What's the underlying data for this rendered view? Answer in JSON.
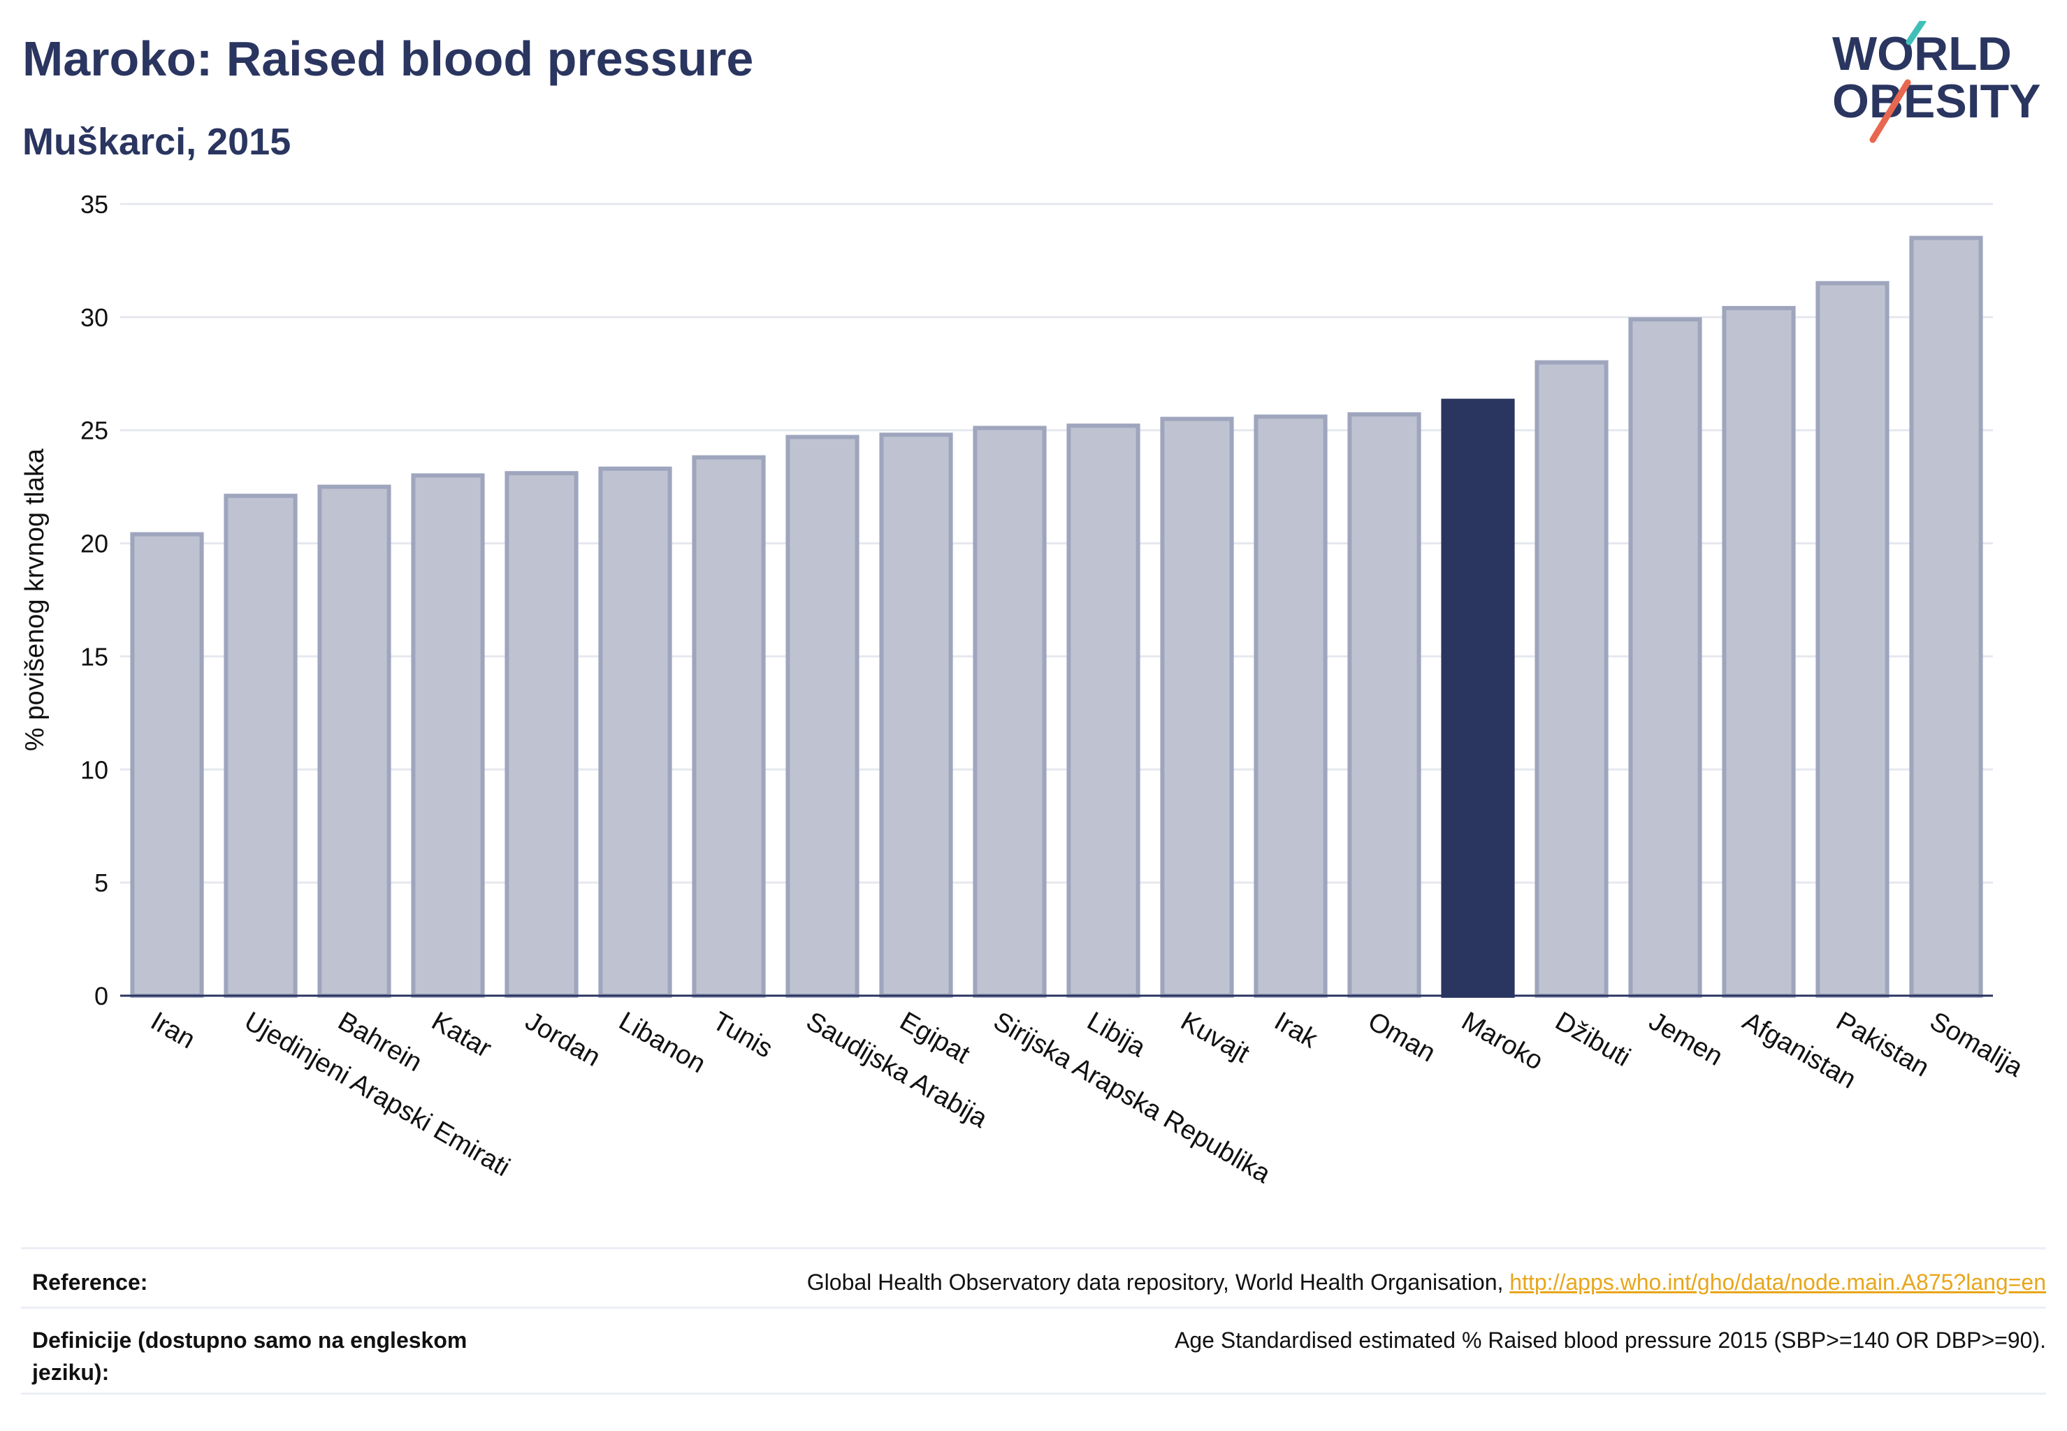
{
  "header": {
    "title": "Maroko: Raised blood pressure",
    "subtitle": "Muškarci, 2015"
  },
  "logo": {
    "line1": "WORLD",
    "line2": "OBESITY",
    "text_color": "#2a3560",
    "slash_colors": [
      "#3fbfb8",
      "#e8674f"
    ]
  },
  "chart_data": {
    "type": "bar",
    "ylabel": "% povišenog krvnog tlaka",
    "xlabel": "",
    "ylim": [
      0,
      35
    ],
    "yticks": [
      0,
      5,
      10,
      15,
      20,
      25,
      30,
      35
    ],
    "grid": true,
    "highlight": "Maroko",
    "colors": {
      "bar_fill": "#bfc3d1",
      "bar_stroke": "#9ea5bd",
      "highlight_fill": "#2a3560",
      "grid": "#e6e8ef",
      "axis": "#2a3560"
    },
    "categories": [
      "Iran",
      "Ujedinjeni Arapski Emirati",
      "Bahrein",
      "Katar",
      "Jordan",
      "Libanon",
      "Tunis",
      "Saudijska Arabija",
      "Egipat",
      "Sirijska Arapska Republika",
      "Libija",
      "Kuvajt",
      "Irak",
      "Oman",
      "Maroko",
      "Džibuti",
      "Jemen",
      "Afganistan",
      "Pakistan",
      "Somalija"
    ],
    "values": [
      20.4,
      22.1,
      22.5,
      23.0,
      23.1,
      23.3,
      23.8,
      24.7,
      24.8,
      25.1,
      25.2,
      25.5,
      25.6,
      25.7,
      26.3,
      28.0,
      29.9,
      30.4,
      31.5,
      33.5
    ]
  },
  "footer": {
    "reference_label": "Reference:",
    "reference_text": "Global Health Observatory data repository, World Health Organisation, ",
    "reference_link": "http://apps.who.int/gho/data/node.main.A875?lang=en",
    "definition_label": "Definicije (dostupno samo na engleskom jeziku):",
    "definition_text": "Age Standardised estimated % Raised blood pressure 2015 (SBP>=140 OR DBP>=90)."
  }
}
